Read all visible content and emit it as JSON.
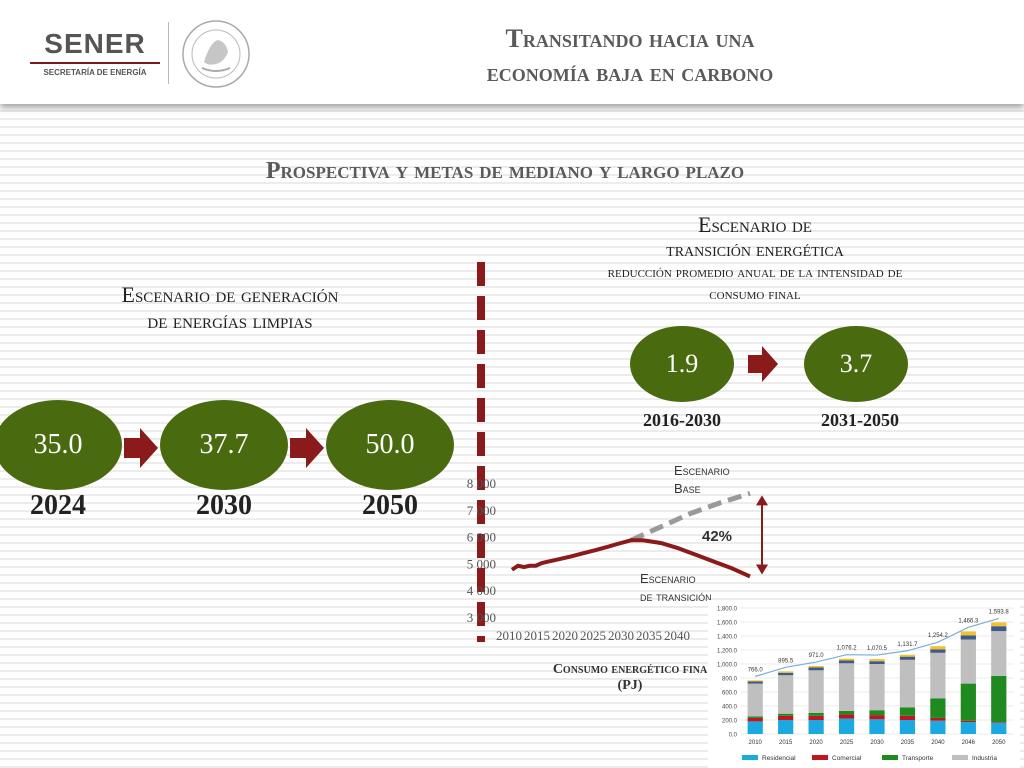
{
  "header": {
    "logo_text": "SENER",
    "logo_sub": "SECRETARÍA DE ENERGÍA",
    "title_line1": "Transitando hacia una",
    "title_line2": "economía baja en carbono"
  },
  "subtitle": "Prospectiva y metas de mediano y largo plazo",
  "clean": {
    "heading_line1": "Escenario de generación",
    "heading_line2": "de energías limpias",
    "values": [
      "35.0",
      "37.7",
      "50.0"
    ],
    "years": [
      "2024",
      "2030",
      "2050"
    ]
  },
  "transition": {
    "heading_line1": "Escenario de",
    "heading_line2": "transición energética",
    "heading_line3": "reducción promedio anual de la intensidad de",
    "heading_line4": "consumo final",
    "values": [
      "1.9",
      "3.7"
    ],
    "periods": [
      "2016-2030",
      "2031-2050"
    ]
  },
  "line_chart_labels": {
    "base_line1": "Escenario",
    "base_line2": "Base",
    "trans_line1": "Escenario",
    "trans_line2": "de transición",
    "pct": "42%",
    "caption_line1": "Consumo energético fina",
    "caption_line2": "(PJ)"
  },
  "colors": {
    "green": "#4a6a10",
    "maroon": "#8b1a1a",
    "base_dash": "#9a9a9a",
    "residencial": "#1ca9e1",
    "comercial": "#c0161e",
    "transporte": "#1f8a1f",
    "industria": "#bfbfbf",
    "top_navy": "#3d5a8a",
    "top_gold": "#f2c12e"
  },
  "chart_data": [
    {
      "type": "line",
      "title": "",
      "xlabel": "",
      "ylabel": "",
      "ylim": [
        3000,
        8000
      ],
      "yticks": [
        "3 000",
        "4 000",
        "5 000",
        "6 000",
        "7 000",
        "8 000"
      ],
      "xticks": [
        "2010",
        "2015",
        "2020",
        "2025",
        "2030",
        "2035",
        "2040"
      ],
      "series": [
        {
          "name": "Escenario Base",
          "style": "dashed",
          "x": [
            2010,
            2012,
            2014,
            2016,
            2018,
            2020,
            2022,
            2024,
            2026,
            2028,
            2030,
            2035,
            2040,
            2045,
            2050
          ],
          "y": [
            4800,
            4950,
            4950,
            5100,
            5200,
            5300,
            5420,
            5530,
            5650,
            5780,
            5900,
            6400,
            6900,
            7300,
            7650
          ]
        },
        {
          "name": "Escenario de transición",
          "style": "solid",
          "x": [
            2010,
            2011,
            2012,
            2013,
            2014,
            2015,
            2016,
            2018,
            2020,
            2022,
            2024,
            2026,
            2028,
            2030,
            2032,
            2035,
            2038,
            2041,
            2044,
            2047,
            2050
          ],
          "y": [
            4800,
            4950,
            4900,
            4950,
            4950,
            5050,
            5100,
            5200,
            5300,
            5420,
            5530,
            5650,
            5780,
            5900,
            5900,
            5800,
            5600,
            5350,
            5100,
            4850,
            4550
          ]
        }
      ]
    },
    {
      "type": "bar",
      "stacked": true,
      "ylim": [
        0,
        1800
      ],
      "yticks": [
        "0.0",
        "200.0",
        "400.0",
        "600.0",
        "800.0",
        "1,000.0",
        "1,200.0",
        "1,400.0",
        "1,600.0",
        "1,800.0"
      ],
      "categories": [
        "2010",
        "2015",
        "2020",
        "2025",
        "2030",
        "2035",
        "2040",
        "2046",
        "2050"
      ],
      "totals": [
        766.0,
        895.5,
        971.0,
        1076.2,
        1070.5,
        1131.7,
        1254.2,
        1466.3,
        1593.8
      ],
      "total_labels": [
        "766.0",
        "895.5",
        "971.0",
        "1,076.2",
        "1,070.5",
        "1,131.7",
        "1,254.2",
        "1,466.3",
        "1,593.8"
      ],
      "series": [
        {
          "name": "Residencial",
          "values": [
            180,
            200,
            200,
            220,
            210,
            200,
            190,
            170,
            160
          ]
        },
        {
          "name": "Comercial",
          "values": [
            50,
            60,
            60,
            60,
            60,
            60,
            40,
            20,
            10
          ]
        },
        {
          "name": "Transporte",
          "values": [
            20,
            30,
            40,
            50,
            70,
            120,
            280,
            530,
            660
          ]
        },
        {
          "name": "Industria",
          "values": [
            470,
            550,
            610,
            680,
            660,
            680,
            650,
            630,
            640
          ]
        },
        {
          "name": "",
          "values": [
            30,
            35,
            40,
            40,
            40,
            45,
            50,
            60,
            70
          ]
        },
        {
          "name": "",
          "values": [
            16,
            20,
            21,
            26,
            30,
            27,
            44,
            56,
            54
          ]
        }
      ]
    }
  ]
}
